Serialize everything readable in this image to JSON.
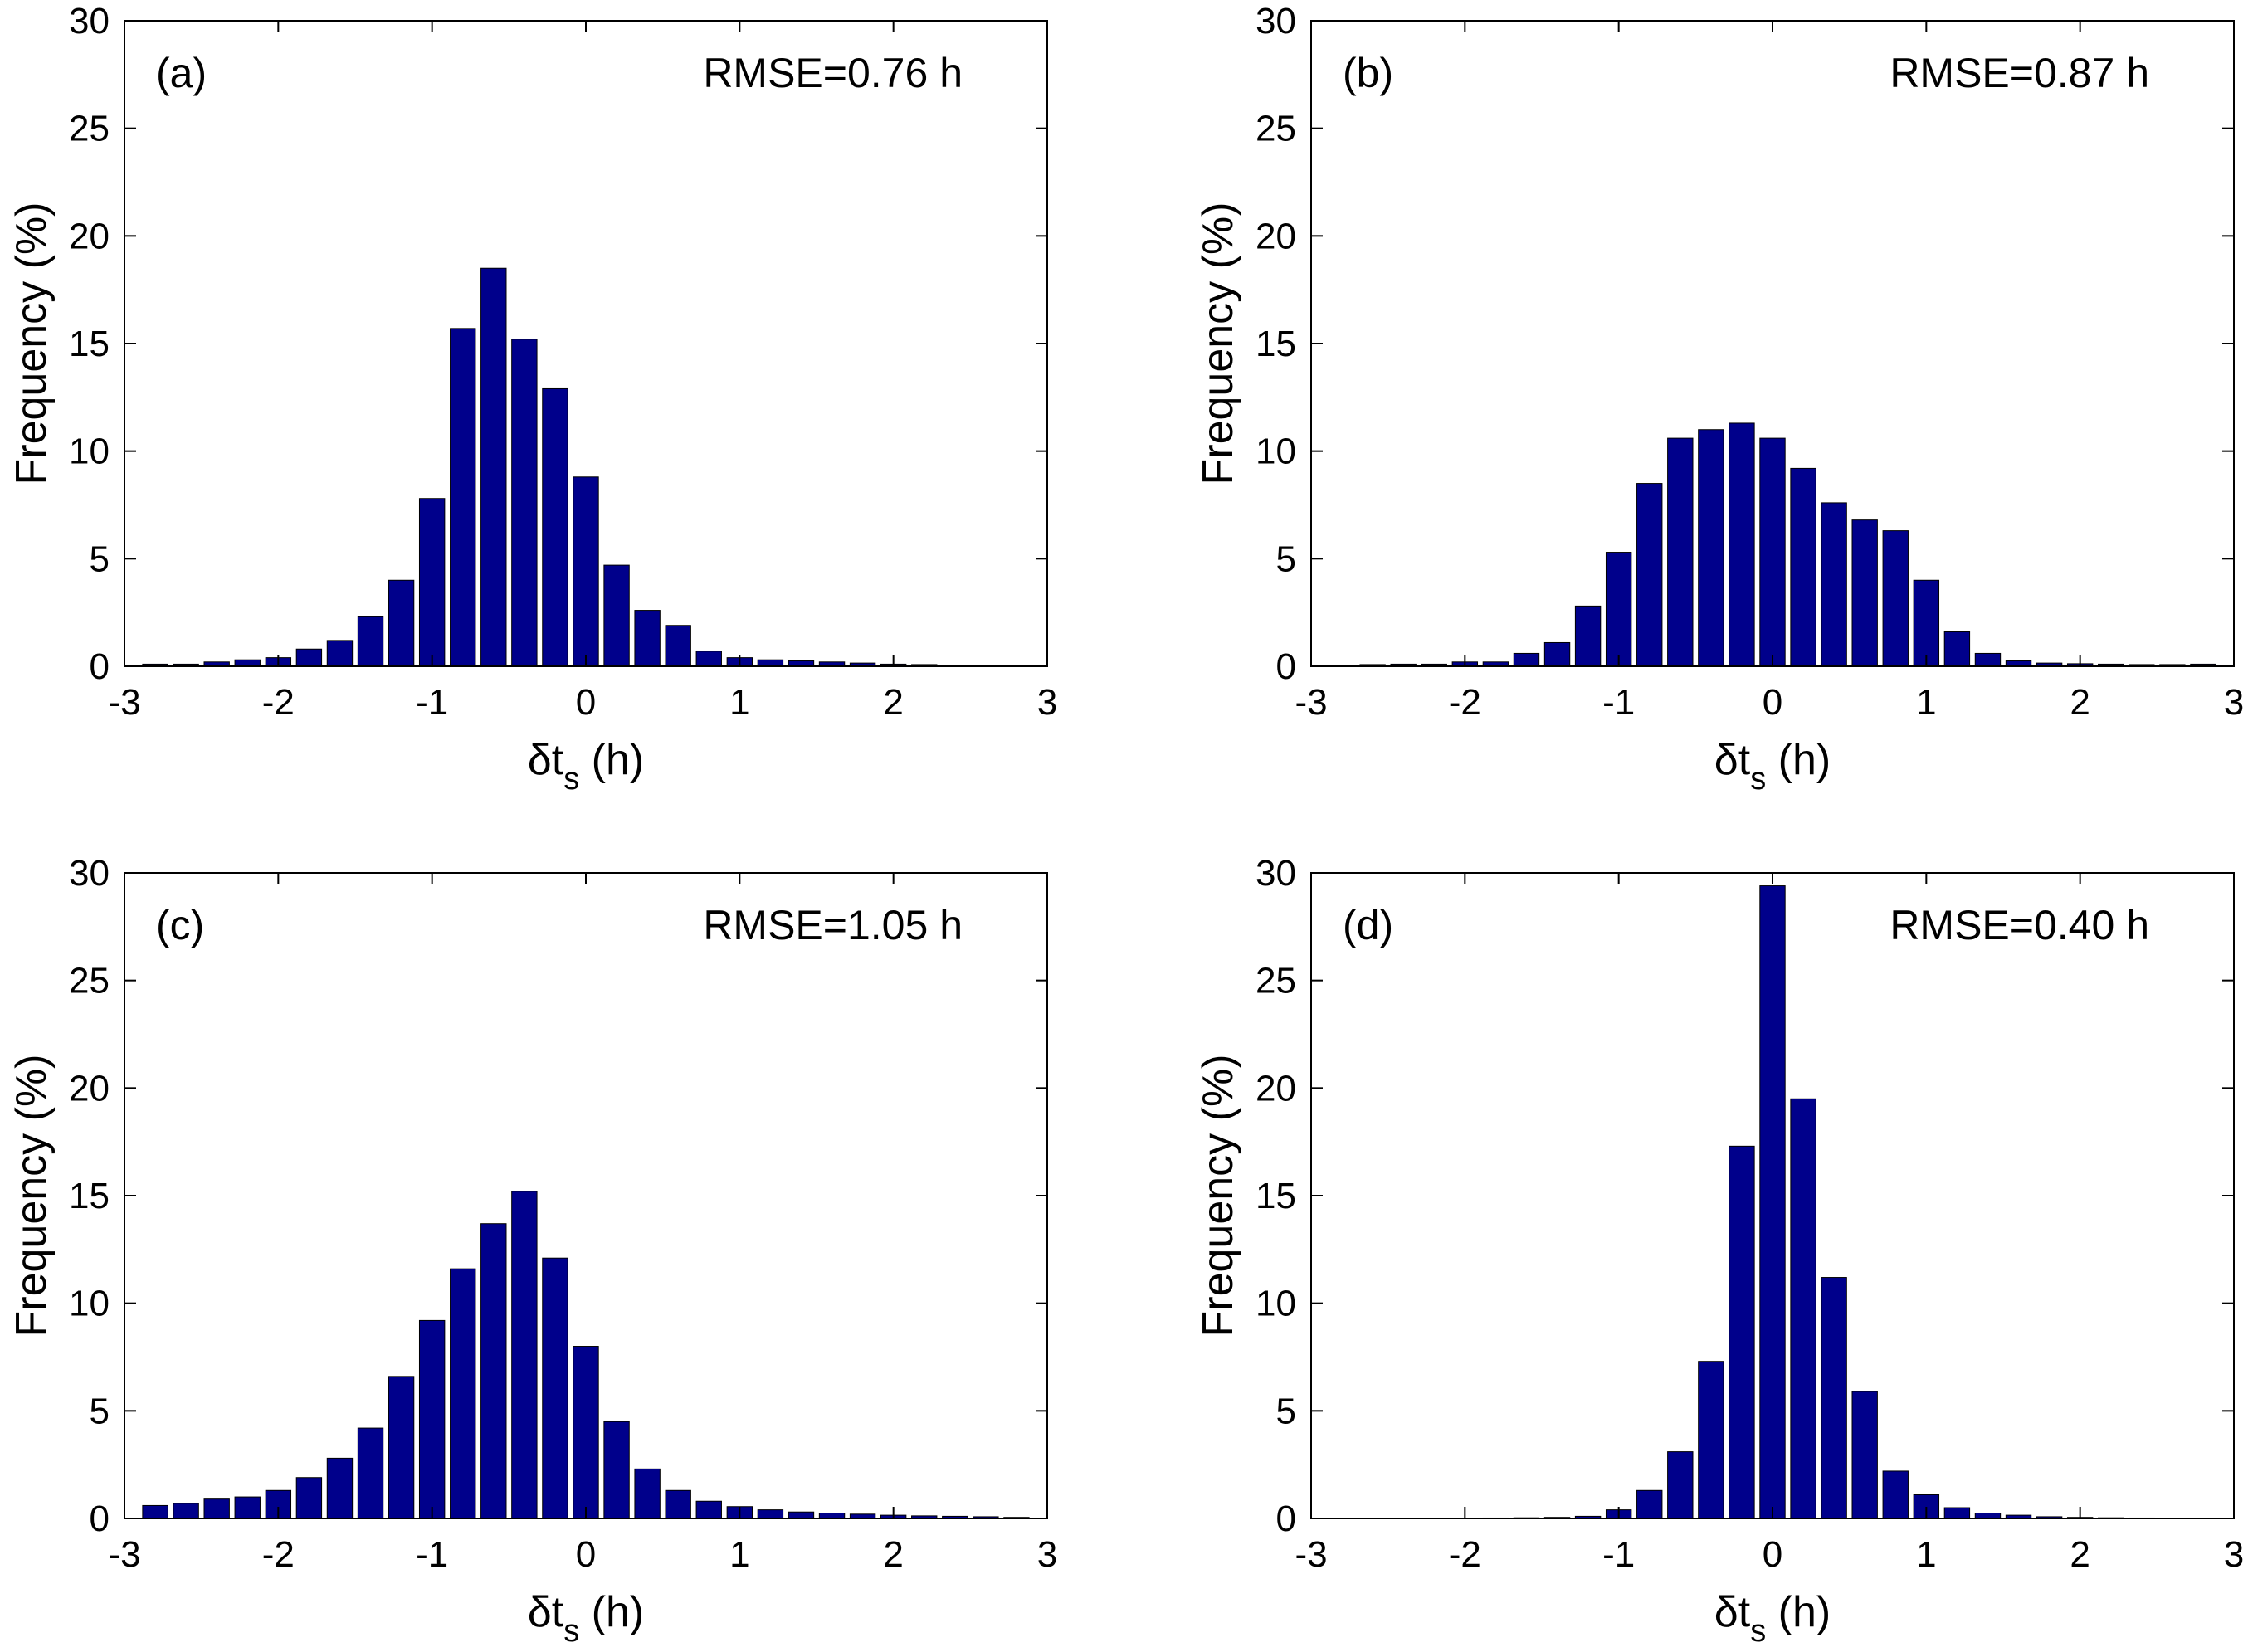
{
  "figure": {
    "bar_color": "#00008B",
    "axis_color": "#000000",
    "x_label": {
      "prefix": "δt",
      "subscript": "s",
      "suffix": " (h)"
    },
    "y_label": "Frequency (%)"
  },
  "chart_data": [
    {
      "type": "bar",
      "panel": "(a)",
      "annotation": "RMSE=0.76 h",
      "xlabel": "δts (h)",
      "ylabel": "Frequency (%)",
      "xlim": [
        -3,
        3
      ],
      "ylim": [
        0,
        30
      ],
      "xticks": [
        "-3",
        "-2",
        "-1",
        "0",
        "1",
        "2",
        "3"
      ],
      "yticks": [
        "0",
        "5",
        "10",
        "15",
        "20",
        "25",
        "30"
      ],
      "bin_width": 0.2,
      "x": [
        -2.8,
        -2.6,
        -2.4,
        -2.2,
        -2.0,
        -1.8,
        -1.6,
        -1.4,
        -1.2,
        -1.0,
        -0.8,
        -0.6,
        -0.4,
        -0.2,
        0.0,
        0.2,
        0.4,
        0.6,
        0.8,
        1.0,
        1.2,
        1.4,
        1.6,
        1.8,
        2.0,
        2.2,
        2.4,
        2.6,
        2.8
      ],
      "values": [
        0.1,
        0.1,
        0.2,
        0.3,
        0.4,
        0.8,
        1.2,
        2.3,
        4.0,
        7.8,
        15.7,
        18.5,
        15.2,
        12.9,
        8.8,
        4.7,
        2.6,
        1.9,
        0.7,
        0.4,
        0.3,
        0.25,
        0.2,
        0.15,
        0.1,
        0.08,
        0.05,
        0.03,
        0.02
      ]
    },
    {
      "type": "bar",
      "panel": "(b)",
      "annotation": "RMSE=0.87 h",
      "xlabel": "δts (h)",
      "ylabel": "Frequency (%)",
      "xlim": [
        -3,
        3
      ],
      "ylim": [
        0,
        30
      ],
      "xticks": [
        "-3",
        "-2",
        "-1",
        "0",
        "1",
        "2",
        "3"
      ],
      "yticks": [
        "0",
        "5",
        "10",
        "15",
        "20",
        "25",
        "30"
      ],
      "bin_width": 0.2,
      "x": [
        -2.8,
        -2.6,
        -2.4,
        -2.2,
        -2.0,
        -1.8,
        -1.6,
        -1.4,
        -1.2,
        -1.0,
        -0.8,
        -0.6,
        -0.4,
        -0.2,
        0.0,
        0.2,
        0.4,
        0.6,
        0.8,
        1.0,
        1.2,
        1.4,
        1.6,
        1.8,
        2.0,
        2.2,
        2.4,
        2.6,
        2.8
      ],
      "values": [
        0.05,
        0.08,
        0.1,
        0.1,
        0.2,
        0.2,
        0.6,
        1.1,
        2.8,
        5.3,
        8.5,
        10.6,
        11.0,
        11.3,
        10.6,
        9.2,
        7.6,
        6.8,
        6.3,
        4.0,
        1.6,
        0.6,
        0.25,
        0.15,
        0.12,
        0.1,
        0.08,
        0.08,
        0.1
      ]
    },
    {
      "type": "bar",
      "panel": "(c)",
      "annotation": "RMSE=1.05 h",
      "xlabel": "δts (h)",
      "ylabel": "Frequency (%)",
      "xlim": [
        -3,
        3
      ],
      "ylim": [
        0,
        30
      ],
      "xticks": [
        "-3",
        "-2",
        "-1",
        "0",
        "1",
        "2",
        "3"
      ],
      "yticks": [
        "0",
        "5",
        "10",
        "15",
        "20",
        "25",
        "30"
      ],
      "bin_width": 0.2,
      "x": [
        -2.8,
        -2.6,
        -2.4,
        -2.2,
        -2.0,
        -1.8,
        -1.6,
        -1.4,
        -1.2,
        -1.0,
        -0.8,
        -0.6,
        -0.4,
        -0.2,
        0.0,
        0.2,
        0.4,
        0.6,
        0.8,
        1.0,
        1.2,
        1.4,
        1.6,
        1.8,
        2.0,
        2.2,
        2.4,
        2.6,
        2.8
      ],
      "values": [
        0.6,
        0.7,
        0.9,
        1.0,
        1.3,
        1.9,
        2.8,
        4.2,
        6.6,
        9.2,
        11.6,
        13.7,
        15.2,
        12.1,
        8.0,
        4.5,
        2.3,
        1.3,
        0.8,
        0.55,
        0.4,
        0.3,
        0.25,
        0.2,
        0.15,
        0.12,
        0.1,
        0.08,
        0.05
      ]
    },
    {
      "type": "bar",
      "panel": "(d)",
      "annotation": "RMSE=0.40 h",
      "xlabel": "δts (h)",
      "ylabel": "Frequency (%)",
      "xlim": [
        -3,
        3
      ],
      "ylim": [
        0,
        30
      ],
      "xticks": [
        "-3",
        "-2",
        "-1",
        "0",
        "1",
        "2",
        "3"
      ],
      "yticks": [
        "0",
        "5",
        "10",
        "15",
        "20",
        "25",
        "30"
      ],
      "bin_width": 0.2,
      "x": [
        -2.8,
        -2.6,
        -2.4,
        -2.2,
        -2.0,
        -1.8,
        -1.6,
        -1.4,
        -1.2,
        -1.0,
        -0.8,
        -0.6,
        -0.4,
        -0.2,
        0.0,
        0.2,
        0.4,
        0.6,
        0.8,
        1.0,
        1.2,
        1.4,
        1.6,
        1.8,
        2.0,
        2.2,
        2.4,
        2.6,
        2.8
      ],
      "values": [
        0.01,
        0.01,
        0.01,
        0.01,
        0.01,
        0.02,
        0.03,
        0.05,
        0.1,
        0.4,
        1.3,
        3.1,
        7.3,
        17.3,
        29.4,
        19.5,
        11.2,
        5.9,
        2.2,
        1.1,
        0.5,
        0.25,
        0.15,
        0.08,
        0.05,
        0.03,
        0.02,
        0.01,
        0.01
      ]
    }
  ]
}
